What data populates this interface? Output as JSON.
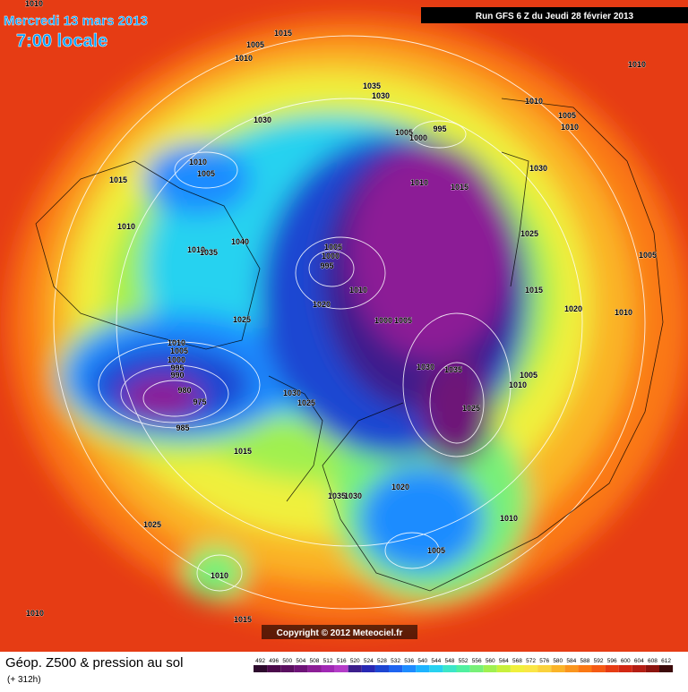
{
  "header": {
    "date": "Mercredi 13 mars 2013",
    "time": "7:00 locale",
    "run": "Run GFS 6 Z du Jeudi 28 février 2013",
    "copyright": "Copyright © 2012 Meteociel.fr"
  },
  "footer": {
    "title": "Géop. Z500 & pression au sol",
    "lead": "(+ 312h)"
  },
  "pressure_labels": [
    1010,
    1015,
    1005,
    1010,
    1010,
    1035,
    1030,
    1010,
    1005,
    1030,
    1010,
    1005,
    995,
    1000,
    1010,
    1005,
    1030,
    1015,
    1010,
    1015,
    1010,
    1025,
    1040,
    1005,
    1000,
    1010,
    1035,
    1005,
    995,
    1010,
    1015,
    1020,
    1020,
    1010,
    1025,
    1000,
    1005,
    1010,
    1005,
    1000,
    995,
    990,
    1030,
    1035,
    1005,
    1010,
    980,
    975,
    1030,
    1025,
    1025,
    985,
    1015,
    1020,
    1035,
    1030,
    1010,
    1025,
    1005,
    1010,
    1010,
    1015
  ],
  "legend": {
    "values": [
      492,
      496,
      500,
      504,
      508,
      512,
      516,
      520,
      524,
      528,
      532,
      536,
      540,
      544,
      548,
      552,
      556,
      560,
      564,
      568,
      572,
      576,
      580,
      584,
      588,
      592,
      596,
      600,
      604,
      608,
      612
    ],
    "colors": [
      "#2d0a2d",
      "#4b0a4b",
      "#5a1060",
      "#6e1478",
      "#8c1e96",
      "#a028b4",
      "#b43cc8",
      "#3c1e8c",
      "#2828b4",
      "#1e46d2",
      "#1e64f0",
      "#1e8cff",
      "#1eb4ff",
      "#28d2f0",
      "#3ce6c8",
      "#50f0a0",
      "#78f078",
      "#a0f050",
      "#c8f03c",
      "#f0f03c",
      "#fae646",
      "#fad23c",
      "#fab428",
      "#fa961e",
      "#fa7814",
      "#f55a14",
      "#e63c14",
      "#d22814",
      "#b41e14",
      "#8c140f",
      "#3c0a0a"
    ]
  }
}
